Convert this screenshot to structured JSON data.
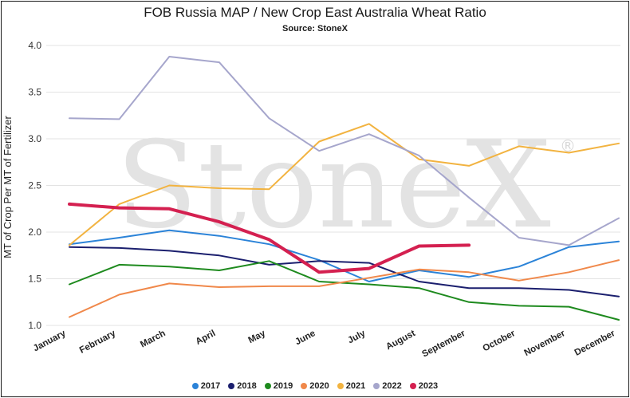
{
  "chart_data": {
    "type": "line",
    "title": "FOB Russia MAP / New Crop East Australia Wheat Ratio",
    "subtitle": "Source: StoneX",
    "ylabel": "MT of Crop Per MT of Fertilizer",
    "xlabel": "",
    "watermark": "StoneX",
    "watermark_mark": "®",
    "ylim": [
      1.0,
      4.0
    ],
    "yticks": [
      "1.0",
      "1.5",
      "2.0",
      "2.5",
      "3.0",
      "3.5",
      "4.0"
    ],
    "grid": true,
    "legend_position": "bottom",
    "categories": [
      "January",
      "February",
      "March",
      "April",
      "May",
      "June",
      "July",
      "August",
      "September",
      "October",
      "November",
      "December"
    ],
    "series": [
      {
        "name": "2017",
        "color": "#2b83d8",
        "values": [
          1.87,
          1.94,
          2.02,
          1.96,
          1.87,
          1.7,
          1.47,
          1.59,
          1.52,
          1.63,
          1.84,
          1.9
        ]
      },
      {
        "name": "2018",
        "color": "#1b1f6e",
        "values": [
          1.84,
          1.83,
          1.8,
          1.75,
          1.65,
          1.69,
          1.67,
          1.47,
          1.4,
          1.4,
          1.38,
          1.31
        ]
      },
      {
        "name": "2019",
        "color": "#1e8a1e",
        "values": [
          1.44,
          1.65,
          1.63,
          1.59,
          1.69,
          1.47,
          1.44,
          1.4,
          1.25,
          1.21,
          1.2,
          1.06
        ]
      },
      {
        "name": "2020",
        "color": "#f0884a",
        "values": [
          1.09,
          1.33,
          1.45,
          1.41,
          1.42,
          1.42,
          1.51,
          1.6,
          1.57,
          1.48,
          1.57,
          1.7
        ]
      },
      {
        "name": "2021",
        "color": "#f2b340",
        "values": [
          1.86,
          2.3,
          2.5,
          2.47,
          2.46,
          2.97,
          3.16,
          2.78,
          2.71,
          2.92,
          2.85,
          2.95
        ]
      },
      {
        "name": "2022",
        "color": "#a6a6cc",
        "values": [
          3.22,
          3.21,
          3.88,
          3.82,
          3.22,
          2.87,
          3.05,
          2.82,
          2.37,
          1.94,
          1.86,
          2.15
        ]
      },
      {
        "name": "2023",
        "color": "#d42050",
        "values": [
          2.3,
          2.26,
          2.25,
          2.11,
          1.92,
          1.57,
          1.61,
          1.85,
          1.86,
          null,
          null,
          null
        ]
      }
    ]
  }
}
